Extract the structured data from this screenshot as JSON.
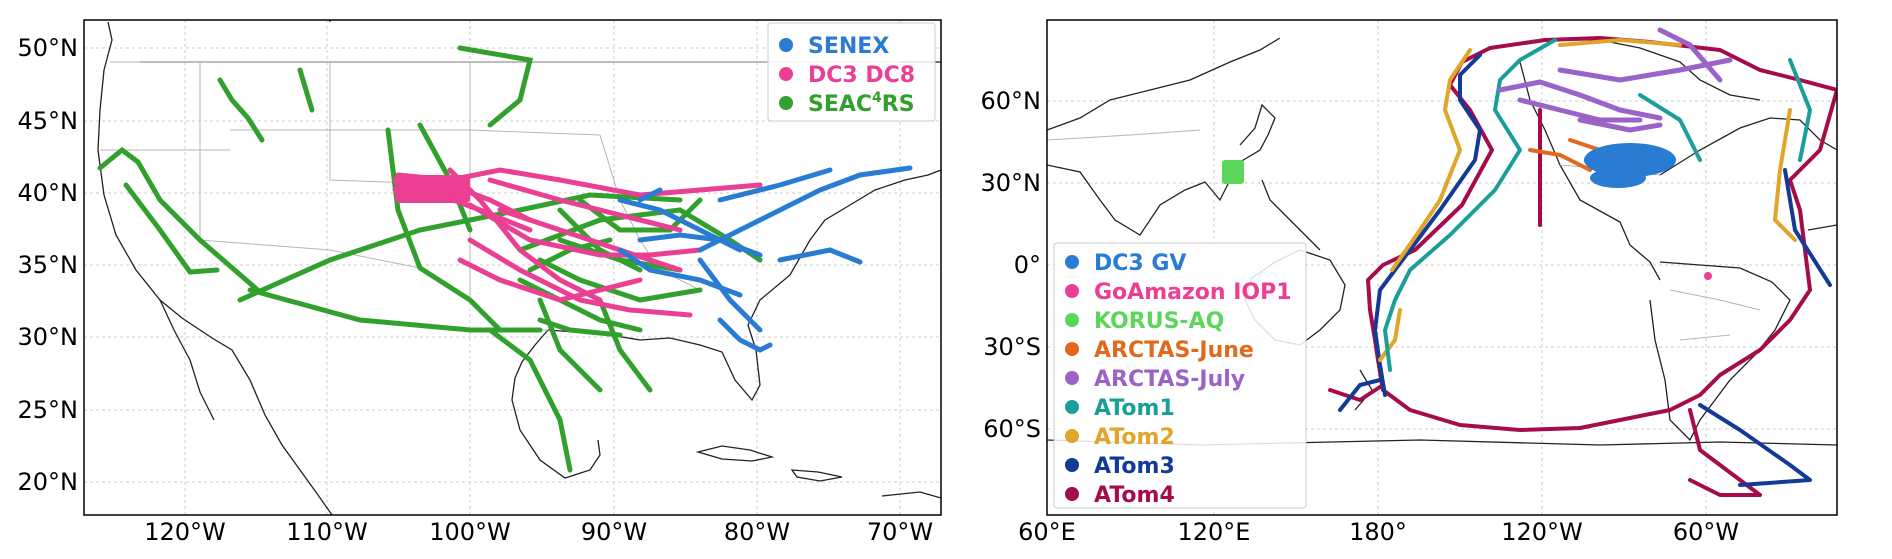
{
  "panel_left": {
    "x_ticks": [
      "120°W",
      "110°W",
      "100°W",
      "90°W",
      "80°W",
      "70°W"
    ],
    "y_ticks": [
      "50°N",
      "45°N",
      "40°N",
      "35°N",
      "30°N",
      "25°N",
      "20°N"
    ],
    "legend": [
      {
        "label": "SENEX",
        "color": "#2a7bd2"
      },
      {
        "label": "DC3 DC8",
        "color": "#ea3f93"
      },
      {
        "label": "SEAC",
        "sup": "4",
        "suffix": "RS",
        "color": "#32a02c"
      }
    ]
  },
  "panel_right": {
    "x_ticks": [
      "60°E",
      "120°E",
      "180°",
      "120°W",
      "60°W"
    ],
    "y_ticks": [
      "60°N",
      "30°N",
      "0°",
      "30°S",
      "60°S"
    ],
    "legend": [
      {
        "label": "DC3 GV",
        "color": "#2a7bd2"
      },
      {
        "label": "GoAmazon IOP1",
        "color": "#ea3f93"
      },
      {
        "label": "KORUS-AQ",
        "color": "#5cd65a"
      },
      {
        "label": "ARCTAS-June",
        "color": "#e0691b"
      },
      {
        "label": "ARCTAS-July",
        "color": "#9a63c8"
      },
      {
        "label": "ATom1",
        "color": "#1a9e9a"
      },
      {
        "label": "ATom2",
        "color": "#e0a52a"
      },
      {
        "label": "ATom3",
        "color": "#123a96"
      },
      {
        "label": "ATom4",
        "color": "#a50c49"
      }
    ]
  }
}
